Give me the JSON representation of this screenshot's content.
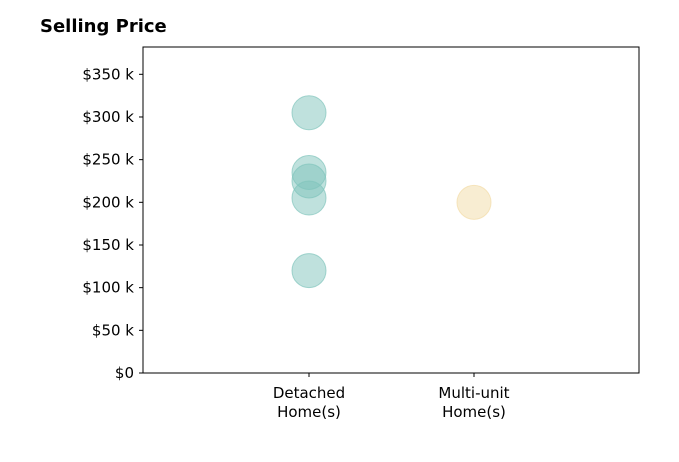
{
  "chart_data": {
    "type": "scatter",
    "title": "Selling Price",
    "xlabel": "",
    "ylabel": "",
    "categories": [
      {
        "line1": "Detached",
        "line2": "Home(s)"
      },
      {
        "line1": "Multi-unit",
        "line2": "Home(s)"
      }
    ],
    "y_ticks": [
      {
        "value": 0,
        "label": "$0"
      },
      {
        "value": 50000,
        "label": "$50 k"
      },
      {
        "value": 100000,
        "label": "$100 k"
      },
      {
        "value": 150000,
        "label": "$150 k"
      },
      {
        "value": 200000,
        "label": "$200 k"
      },
      {
        "value": 250000,
        "label": "$250 k"
      },
      {
        "value": 300000,
        "label": "$300 k"
      },
      {
        "value": 350000,
        "label": "$350 k"
      }
    ],
    "ylim": [
      0,
      382000
    ],
    "grid": false,
    "points": [
      {
        "category": 0,
        "y": 305000,
        "color": "#80c4bc"
      },
      {
        "category": 0,
        "y": 235000,
        "color": "#80c4bc"
      },
      {
        "category": 0,
        "y": 225000,
        "color": "#80c4bc"
      },
      {
        "category": 0,
        "y": 205000,
        "color": "#80c4bc"
      },
      {
        "category": 0,
        "y": 120000,
        "color": "#80c4bc"
      },
      {
        "category": 1,
        "y": 200000,
        "color": "#f2dca6"
      }
    ]
  }
}
